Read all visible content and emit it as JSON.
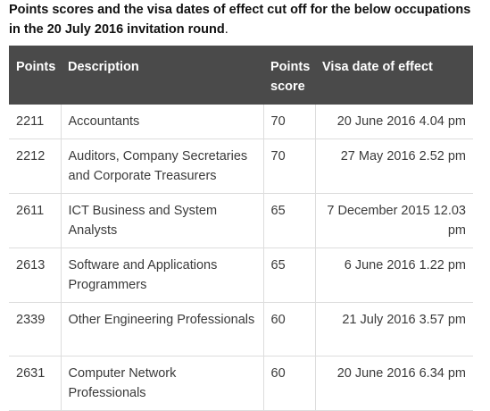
{
  "intro": {
    "text_bold": "Points scores and the visa dates of effect cut off for the below occupations in the 20 July 2016 invitation round",
    "text_end": "."
  },
  "table": {
    "headers": [
      "Points",
      "Description",
      "Points score",
      "Visa date of effect"
    ],
    "rows": [
      {
        "code": "2211",
        "description": "Accountants",
        "score": "70",
        "date": "20 June 2016  4.04 pm"
      },
      {
        "code": "2212",
        "description": "Auditors, Company Secretaries and Corporate Treasurers",
        "score": "70",
        "date": "27 May 2016 2.52 pm"
      },
      {
        "code": "2611",
        "description": "ICT Business and System Analysts",
        "score": "65",
        "date": "7 December 2015 12.03 pm"
      },
      {
        "code": "2613",
        "description": "Software and Applications Programmers",
        "score": "65",
        "date": "6 June 2016 1.22 pm"
      },
      {
        "code": "2339",
        "description": "Other Engineering Professionals",
        "score": "60",
        "date": "21 July 2016  3.57 pm"
      },
      {
        "code": "2631",
        "description": "Computer Network Professionals",
        "score": "60",
        "date": "20 June 2016 6.34 pm"
      }
    ]
  }
}
